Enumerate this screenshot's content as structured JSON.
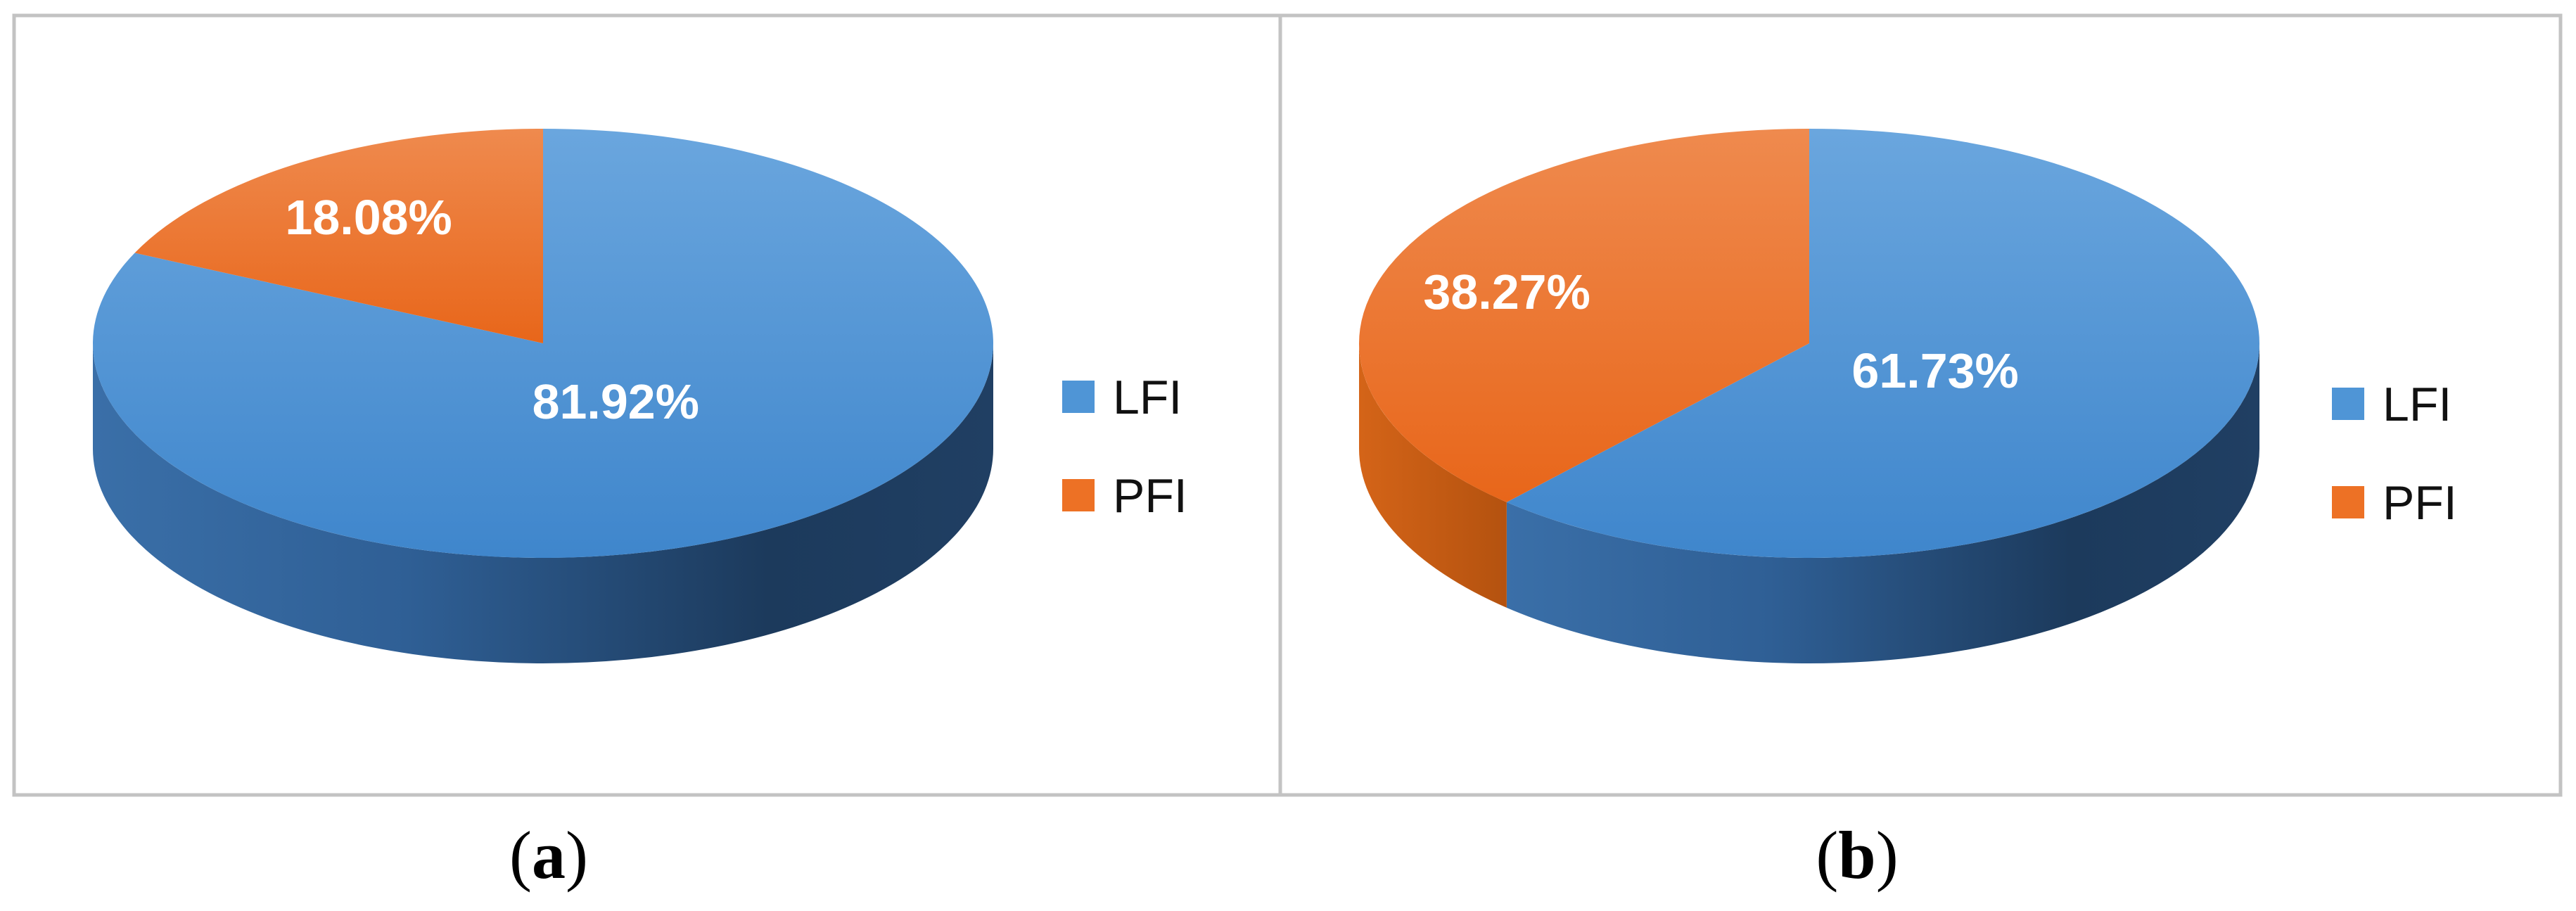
{
  "chart_data": [
    {
      "type": "pie",
      "panel_label": "a",
      "categories": [
        "LFI",
        "PFI"
      ],
      "values": [
        81.92,
        18.08
      ],
      "data_labels": [
        "81.92%",
        "18.08%"
      ],
      "legend": {
        "entries": [
          "LFI",
          "PFI"
        ],
        "placement": "right"
      },
      "colors": [
        "#4f95d6",
        "#ed7125"
      ],
      "three_d": true
    },
    {
      "type": "pie",
      "panel_label": "b",
      "categories": [
        "LFI",
        "PFI"
      ],
      "values": [
        61.73,
        38.27
      ],
      "data_labels": [
        "61.73%",
        "38.27%"
      ],
      "legend": {
        "entries": [
          "LFI",
          "PFI"
        ],
        "placement": "right"
      },
      "colors": [
        "#4f95d6",
        "#ed7125"
      ],
      "three_d": true
    }
  ]
}
